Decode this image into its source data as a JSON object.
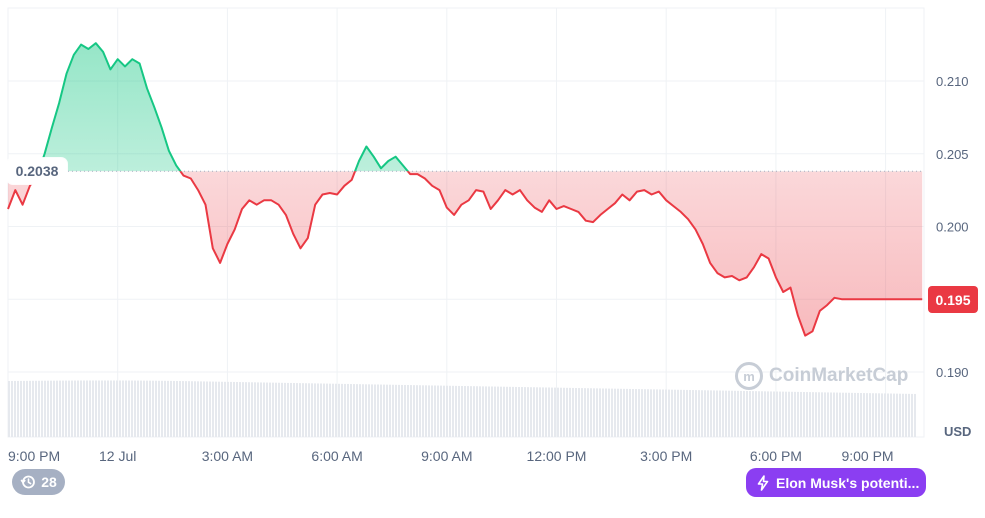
{
  "chart_data": {
    "type": "area",
    "reference_value": 0.2038,
    "reference_label": "0.2038",
    "current_value": 0.195,
    "current_label": "0.195",
    "currency": "USD",
    "ylim": [
      0.187,
      0.2155
    ],
    "y_ticks": [
      "0.210",
      "0.205",
      "0.200",
      "0.195",
      "0.190"
    ],
    "x_ticks": [
      "9:00 PM",
      "12 Jul",
      "3:00 AM",
      "6:00 AM",
      "9:00 AM",
      "12:00 PM",
      "3:00 PM",
      "6:00 PM",
      "9:00 PM"
    ],
    "x_tick_hours": [
      0,
      3,
      6,
      9,
      12,
      15,
      18,
      21,
      24
    ],
    "x_range_hours": [
      0,
      25.05
    ],
    "grid": true,
    "colors": {
      "up": "#16c784",
      "down": "#ea3943",
      "grid": "#eff2f5",
      "volume": "#e6e9ee"
    },
    "series": [
      {
        "x": [
          0.0,
          0.2,
          0.4,
          0.6,
          0.8,
          1.0,
          1.2,
          1.4,
          1.6,
          1.8,
          2.0,
          2.2,
          2.4,
          2.6,
          2.8,
          3.0,
          3.2,
          3.4,
          3.6,
          3.8,
          4.0,
          4.2,
          4.4,
          4.6,
          4.8,
          5.0,
          5.2,
          5.4,
          5.6,
          5.8,
          6.0,
          6.2,
          6.4,
          6.6,
          6.8,
          7.0,
          7.2,
          7.4,
          7.6,
          7.8,
          8.0,
          8.2,
          8.4,
          8.6,
          8.8,
          9.0,
          9.2,
          9.4,
          9.6,
          9.8,
          10.0,
          10.2,
          10.4,
          10.6,
          10.8,
          11.0,
          11.2,
          11.4,
          11.6,
          11.8,
          12.0,
          12.2,
          12.4,
          12.6,
          12.8,
          13.0,
          13.2,
          13.4,
          13.6,
          13.8,
          14.0,
          14.2,
          14.4,
          14.6,
          14.8,
          15.0,
          15.2,
          15.4,
          15.6,
          15.8,
          16.0,
          16.2,
          16.4,
          16.6,
          16.8,
          17.0,
          17.2,
          17.4,
          17.6,
          17.8,
          18.0,
          18.2,
          18.4,
          18.6,
          18.8,
          19.0,
          19.2,
          19.4,
          19.6,
          19.8,
          20.0,
          20.2,
          20.4,
          20.6,
          20.8,
          21.0,
          21.2,
          21.4,
          21.6,
          21.8,
          22.0,
          22.2,
          22.4,
          22.6,
          22.8,
          23.0,
          23.2,
          23.4,
          23.6,
          23.8,
          24.0,
          24.2,
          24.4,
          24.6,
          24.8,
          25.0
        ],
        "values": [
          0.2012,
          0.2025,
          0.2015,
          0.2028,
          0.2035,
          0.205,
          0.2068,
          0.2085,
          0.2105,
          0.2118,
          0.2125,
          0.2122,
          0.2126,
          0.212,
          0.2108,
          0.2115,
          0.211,
          0.2115,
          0.2112,
          0.2095,
          0.2082,
          0.2068,
          0.2052,
          0.2042,
          0.2035,
          0.2033,
          0.2025,
          0.2015,
          0.1985,
          0.1975,
          0.1988,
          0.1998,
          0.2012,
          0.2018,
          0.2015,
          0.2018,
          0.2018,
          0.2015,
          0.2008,
          0.1995,
          0.1985,
          0.1992,
          0.2015,
          0.2022,
          0.2023,
          0.2022,
          0.2028,
          0.2032,
          0.2045,
          0.2055,
          0.2048,
          0.204,
          0.2045,
          0.2048,
          0.2042,
          0.2036,
          0.2036,
          0.2033,
          0.2028,
          0.2025,
          0.2013,
          0.2008,
          0.2015,
          0.2018,
          0.2025,
          0.2024,
          0.2012,
          0.2018,
          0.2025,
          0.2022,
          0.2025,
          0.2018,
          0.2013,
          0.201,
          0.2018,
          0.2012,
          0.2014,
          0.2012,
          0.201,
          0.2004,
          0.2003,
          0.2008,
          0.2012,
          0.2016,
          0.2022,
          0.2018,
          0.2024,
          0.2025,
          0.2022,
          0.2024,
          0.2018,
          0.2014,
          0.201,
          0.2005,
          0.1998,
          0.1988,
          0.1975,
          0.1968,
          0.1965,
          0.1966,
          0.1963,
          0.1965,
          0.1972,
          0.1981,
          0.1978,
          0.1965,
          0.1955,
          0.1958,
          0.1939,
          0.1925,
          0.1928,
          0.1942,
          0.1946,
          0.1951,
          0.195,
          0.195,
          0.195,
          0.195,
          0.195,
          0.195,
          0.195,
          0.195,
          0.195,
          0.195,
          0.195,
          0.195
        ]
      }
    ]
  },
  "watermark": {
    "brand": "CoinMarketCap"
  },
  "events": {
    "count": "28"
  },
  "news": {
    "label": "Elon Musk's potenti..."
  },
  "icons": {
    "history": "history-icon",
    "bolt": "lightning-icon",
    "logo": "coinmarketcap-logo-icon"
  }
}
